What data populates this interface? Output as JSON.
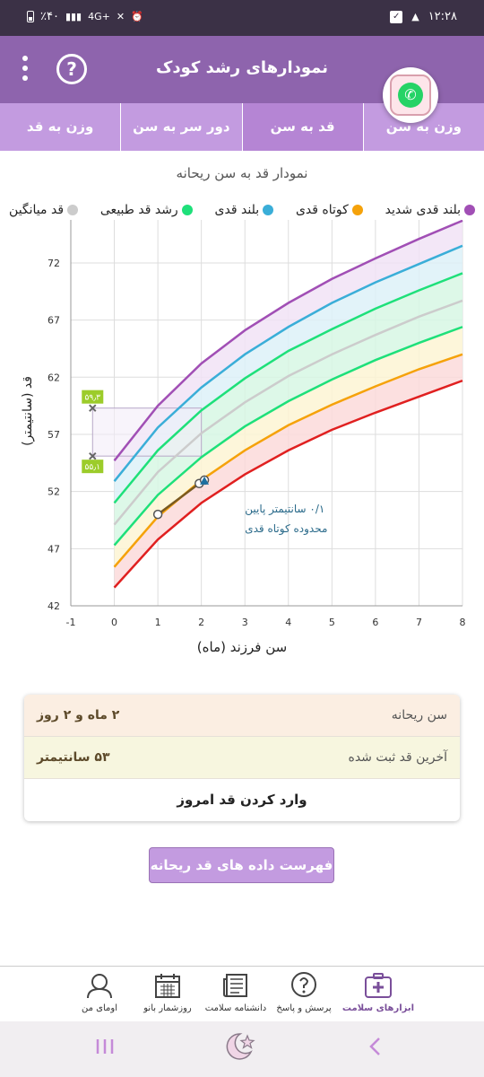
{
  "status_bar": {
    "battery": "٪۴۰",
    "network": "4G+",
    "time": "۱۲:۲۸"
  },
  "app_bar": {
    "title": "نمودارهای رشد کودک",
    "help": "?"
  },
  "tabs": [
    {
      "label": "وزن به سن",
      "active": false
    },
    {
      "label": "قد به سن",
      "active": true
    },
    {
      "label": "دور سر به سن",
      "active": false
    },
    {
      "label": "وزن به قد",
      "active": false
    }
  ],
  "chart_title": "نمودار قد به سن ریحانه",
  "legend": [
    {
      "label": "بلند قدی شدید",
      "color": "#a14fb5"
    },
    {
      "label": "کوتاه قدی",
      "color": "#f5a20a"
    },
    {
      "label": "بلند قدی",
      "color": "#3aaed8"
    },
    {
      "label": "رشد قد طبیعی",
      "color": "#1ee07a"
    },
    {
      "label": "قد میانگین",
      "color": "#cccccc"
    }
  ],
  "chart_data": {
    "type": "line",
    "xlabel": "سن فرزند (ماه)",
    "ylabel": "قد (سانتیمتر)",
    "xlim": [
      -1,
      8
    ],
    "ylim": [
      42,
      76
    ],
    "x_ticks": [
      "-1",
      "0",
      "1",
      "2",
      "3",
      "4",
      "5",
      "6",
      "7",
      "8"
    ],
    "y_ticks": [
      "42",
      "47",
      "52",
      "57",
      "62",
      "67",
      "72"
    ],
    "x": [
      0,
      1,
      2,
      3,
      4,
      5,
      6,
      7,
      8
    ],
    "series": [
      {
        "name": "بلند قدی شدید",
        "color": "#a14fb5",
        "values": [
          54.7,
          59.5,
          63.2,
          66.1,
          68.5,
          70.6,
          72.4,
          74.1,
          75.7
        ]
      },
      {
        "name": "بلند قدی",
        "color": "#3aaed8",
        "values": [
          52.9,
          57.6,
          61.1,
          64.0,
          66.4,
          68.5,
          70.3,
          71.9,
          73.5
        ]
      },
      {
        "name": "رشد قد طبیعی",
        "color": "#1ee07a",
        "values": [
          51.0,
          55.6,
          59.1,
          61.9,
          64.3,
          66.2,
          68.0,
          69.6,
          71.1
        ]
      },
      {
        "name": "قد میانگین",
        "color": "#cccccc",
        "values": [
          49.1,
          53.7,
          57.1,
          59.8,
          62.1,
          64.0,
          65.7,
          67.3,
          68.7
        ]
      },
      {
        "name": "",
        "color": "#1ee07a",
        "values": [
          47.3,
          51.7,
          55.0,
          57.7,
          59.9,
          61.8,
          63.5,
          65.0,
          66.4
        ]
      },
      {
        "name": "کوتاه قدی",
        "color": "#f5a20a",
        "values": [
          45.4,
          49.8,
          53.0,
          55.6,
          57.8,
          59.6,
          61.2,
          62.7,
          64.0
        ]
      },
      {
        "name": "",
        "color": "#e02020",
        "values": [
          43.6,
          47.8,
          51.0,
          53.5,
          55.6,
          57.4,
          58.9,
          60.3,
          61.7
        ]
      }
    ],
    "child_series": {
      "x": [
        1,
        1.95,
        2.07
      ],
      "values": [
        50.0,
        52.7,
        53.0
      ]
    },
    "birth_range": {
      "x": -0.5,
      "low": 55.1,
      "high": 59.3,
      "low_label": "۵۵٫۱",
      "high_label": "۵۹٫۳"
    },
    "annotation": [
      "۰/۱ سانتیمتر پایین",
      "محدوده کوتاه قدی"
    ],
    "grid": true
  },
  "info": {
    "age_label": "سن ریحانه",
    "age_value": "۲ ماه و ۲ روز",
    "height_label": "آخرین قد ثبت شده",
    "height_value": "۵۳ سانتیمتر",
    "enter_today": "وارد کردن قد امروز"
  },
  "list_button": "فهرست داده های قد ریحانه",
  "bottom_nav": [
    {
      "label": "ابزارهای سلامت",
      "icon": "medkit-icon",
      "active": true
    },
    {
      "label": "پرسش و پاسخ",
      "icon": "question-bubble-icon",
      "active": false
    },
    {
      "label": "دانشنامه سلامت",
      "icon": "newspaper-icon",
      "active": false
    },
    {
      "label": "روزشمار بانو",
      "icon": "calendar-icon",
      "active": false
    },
    {
      "label": "اومای من",
      "icon": "user-icon",
      "active": false
    }
  ]
}
